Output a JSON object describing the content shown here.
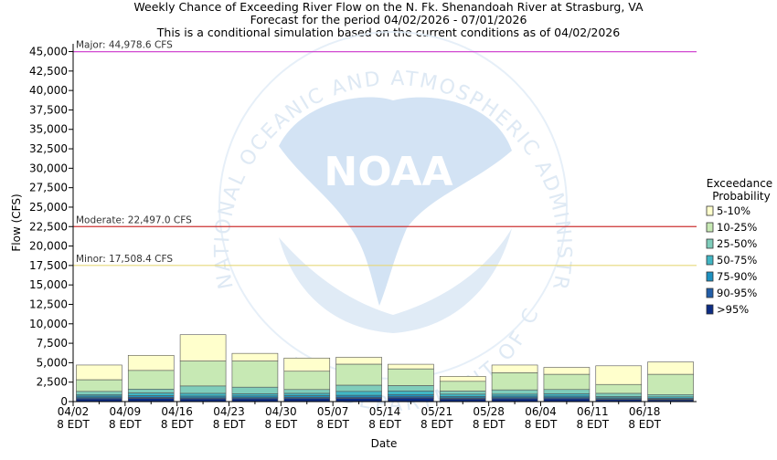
{
  "chart_data": {
    "type": "bar",
    "title_lines": [
      "Weekly Chance of Exceeding River Flow on the N. Fk. Shenandoah River at Strasburg, VA",
      "Forecast for the period 04/02/2026 - 07/01/2026",
      "This is a conditional simulation based on the current conditions as of 04/02/2026"
    ],
    "xlabel": "Date",
    "ylabel": "Flow (CFS)",
    "ylim": [
      0,
      46000
    ],
    "y_ticks": [
      0,
      2500,
      5000,
      7500,
      10000,
      12500,
      15000,
      17500,
      20000,
      22500,
      25000,
      27500,
      30000,
      32500,
      35000,
      37500,
      40000,
      42500,
      45000
    ],
    "y_tick_labels": [
      "0",
      "2,500",
      "5,000",
      "7,500",
      "10,000",
      "12,500",
      "15,000",
      "17,500",
      "20,000",
      "22,500",
      "25,000",
      "27,500",
      "30,000",
      "32,500",
      "35,000",
      "37,500",
      "40,000",
      "42,500",
      "45,000"
    ],
    "categories": [
      "04/02 8 EDT",
      "04/09 8 EDT",
      "04/16 8 EDT",
      "04/23 8 EDT",
      "04/30 8 EDT",
      "05/07 8 EDT",
      "05/14 8 EDT",
      "05/21 8 EDT",
      "05/28 8 EDT",
      "06/04 8 EDT",
      "06/11 8 EDT",
      "06/18 8 EDT"
    ],
    "x_tick_labels": [
      [
        "04/02",
        "8 EDT"
      ],
      [
        "04/09",
        "8 EDT"
      ],
      [
        "04/16",
        "8 EDT"
      ],
      [
        "04/23",
        "8 EDT"
      ],
      [
        "04/30",
        "8 EDT"
      ],
      [
        "05/07",
        "8 EDT"
      ],
      [
        "05/14",
        "8 EDT"
      ],
      [
        "05/21",
        "8 EDT"
      ],
      [
        "05/28",
        "8 EDT"
      ],
      [
        "06/04",
        "8 EDT"
      ],
      [
        "06/11",
        "8 EDT"
      ],
      [
        "06/18",
        "8 EDT"
      ]
    ],
    "legend_title": [
      "Exceedance",
      "Probability"
    ],
    "legend_placement": "right",
    "series": [
      {
        "name": "5-10%",
        "color": "#ffffcc",
        "lower": [
          2800,
          4000,
          5200,
          5200,
          3900,
          4800,
          4200,
          2600,
          3700,
          3500,
          2200,
          3500
        ],
        "upper": [
          4700,
          5950,
          8600,
          6200,
          5600,
          5700,
          4800,
          3250,
          4700,
          4400,
          4600,
          5100
        ]
      },
      {
        "name": "10-25%",
        "color": "#c7e9b4",
        "lower": [
          1300,
          1600,
          2000,
          1850,
          1550,
          2100,
          2050,
          1350,
          1500,
          1550,
          1050,
          900
        ],
        "upper": [
          2800,
          4000,
          5200,
          5200,
          3900,
          4800,
          4200,
          2600,
          3700,
          3500,
          2200,
          3500
        ]
      },
      {
        "name": "25-50%",
        "color": "#7fcdbb",
        "lower": [
          900,
          1100,
          1050,
          1000,
          1050,
          1300,
          1350,
          950,
          950,
          1000,
          650,
          600
        ],
        "upper": [
          1300,
          1600,
          2000,
          1850,
          1550,
          2100,
          2050,
          1350,
          1500,
          1550,
          1050,
          900
        ]
      },
      {
        "name": "50-75%",
        "color": "#41b6c4",
        "lower": [
          700,
          750,
          700,
          720,
          750,
          800,
          900,
          650,
          700,
          700,
          480,
          420
        ],
        "upper": [
          900,
          1100,
          1050,
          1000,
          1050,
          1300,
          1350,
          950,
          950,
          1000,
          650,
          600
        ]
      },
      {
        "name": "75-90%",
        "color": "#1d91c0",
        "lower": [
          500,
          550,
          480,
          500,
          520,
          560,
          620,
          460,
          500,
          500,
          350,
          300
        ],
        "upper": [
          700,
          750,
          700,
          720,
          750,
          800,
          900,
          650,
          700,
          700,
          480,
          420
        ]
      },
      {
        "name": "90-95%",
        "color": "#225ea8",
        "lower": [
          350,
          400,
          350,
          360,
          380,
          400,
          450,
          340,
          360,
          360,
          250,
          220
        ],
        "upper": [
          500,
          550,
          480,
          500,
          520,
          560,
          620,
          460,
          500,
          500,
          350,
          300
        ]
      },
      {
        "name": ">95%",
        "color": "#0c2c84",
        "lower": [
          0,
          0,
          0,
          0,
          0,
          0,
          0,
          0,
          0,
          0,
          0,
          0
        ],
        "upper": [
          350,
          400,
          350,
          360,
          380,
          400,
          450,
          340,
          360,
          360,
          250,
          220
        ]
      }
    ],
    "thresholds": [
      {
        "label": "Major: 44,978.6 CFS",
        "value": 44978.6,
        "color": "#cc33cc"
      },
      {
        "label": "Moderate: 22,497.0 CFS",
        "value": 22497.0,
        "color": "#cc3333"
      },
      {
        "label": "Minor: 17,508.4 CFS",
        "value": 17508.4,
        "color": "#e6d87a"
      }
    ],
    "grid": false
  },
  "watermark": {
    "emblem_text": "NOAA",
    "ring_text": "NATIONAL OCEANIC AND ATMOSPHERIC ADMINISTRATION",
    "lower_ring_text": "U.S. DEPARTMENT OF COMMERCE",
    "color": "#c9ddf0"
  }
}
